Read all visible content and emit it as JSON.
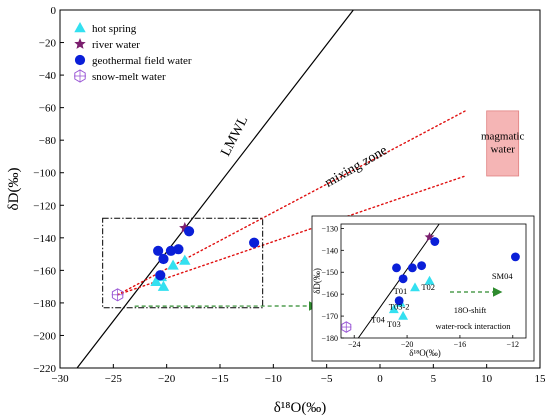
{
  "chart_data": {
    "type": "scatter",
    "xlabel": "δ¹⁸O(‰)",
    "ylabel": "δD(‰)",
    "xlim": [
      -30,
      15
    ],
    "ylim": [
      -220,
      0
    ],
    "xticks": [
      "−30",
      "−25",
      "−20",
      "−15",
      "−10",
      "−5",
      "0",
      "5",
      "10",
      "15"
    ],
    "yticks": [
      "0",
      "−20",
      "−40",
      "−60",
      "−80",
      "−100",
      "−120",
      "−140",
      "−160",
      "−180",
      "−200",
      "−220"
    ],
    "legend": {
      "position": "top-left",
      "entries": [
        "hot spring",
        "river water",
        "geothermal field water",
        "snow-melt water"
      ]
    },
    "colors": {
      "hot_spring": "#33e0f0",
      "river_water": "#7b1f6e",
      "geothermal": "#0a1fd8",
      "snow_melt": "#9b59d6",
      "mixing_line": "#e01010",
      "magmatic_fill": "#f5b5b5",
      "arrow": "#2e8b2e"
    },
    "lmwl": {
      "label": "LMWL",
      "from": [
        -28.4,
        -220
      ],
      "to": [
        -2.5,
        0
      ]
    },
    "mixing_zone": {
      "label": "mixing zone",
      "upper_line": {
        "from": [
          -24.6,
          -175
        ],
        "to": [
          8,
          -62
        ]
      },
      "lower_line": {
        "from": [
          -24.6,
          -175
        ],
        "to": [
          8,
          -102
        ]
      }
    },
    "magmatic_water": {
      "label": "magmatic water",
      "x": [
        10,
        13
      ],
      "y": [
        -62,
        -102
      ]
    },
    "series": [
      {
        "name": "hot spring",
        "marker": "triangle",
        "points": [
          {
            "x": -20.5,
            "y": -164
          },
          {
            "x": -21.0,
            "y": -167
          },
          {
            "x": -20.3,
            "y": -170
          },
          {
            "x": -19.4,
            "y": -157
          },
          {
            "x": -18.3,
            "y": -154
          }
        ]
      },
      {
        "name": "river water",
        "marker": "star",
        "points": [
          {
            "x": -18.3,
            "y": -134
          }
        ]
      },
      {
        "name": "geothermal field water",
        "marker": "circle",
        "points": [
          {
            "x": -20.8,
            "y": -148
          },
          {
            "x": -20.3,
            "y": -153
          },
          {
            "x": -19.6,
            "y": -148
          },
          {
            "x": -18.9,
            "y": -147
          },
          {
            "x": -17.9,
            "y": -136
          },
          {
            "x": -20.6,
            "y": -163
          },
          {
            "x": -11.8,
            "y": -143
          }
        ]
      },
      {
        "name": "snow-melt water",
        "marker": "hexagon",
        "points": [
          {
            "x": -24.6,
            "y": -175
          }
        ]
      }
    ],
    "inset": {
      "xlim": [
        -25,
        -11
      ],
      "ylim": [
        -180,
        -128
      ],
      "xticks": [
        "−24",
        "−20",
        "−16",
        "−12"
      ],
      "yticks": [
        "−130",
        "−140",
        "−150",
        "−160",
        "−170",
        "−180"
      ],
      "xlabel": "δ¹⁸O(‰)",
      "ylabel": "δD(‰)",
      "sample_labels": [
        {
          "text": "T01",
          "x": -20.5,
          "y": -160
        },
        {
          "text": "T02",
          "x": -18.4,
          "y": -158
        },
        {
          "text": "T03-2",
          "x": -20.6,
          "y": -167
        },
        {
          "text": "T04",
          "x": -22.2,
          "y": -173
        },
        {
          "text": "T03",
          "x": -21.0,
          "y": -175
        },
        {
          "text": "SM04",
          "x": -12.8,
          "y": -153
        }
      ],
      "annotations": {
        "shift_label": "18O-shift",
        "interaction_label": "water-rock interaction"
      }
    }
  }
}
